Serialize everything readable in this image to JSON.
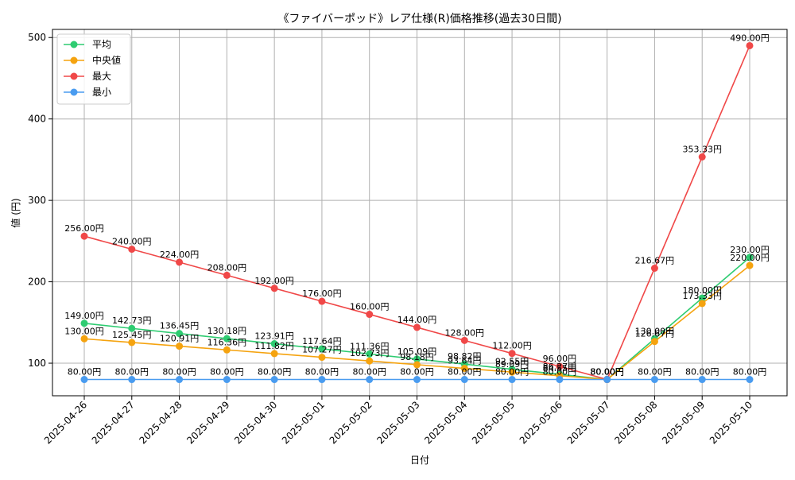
{
  "chart_data": {
    "type": "line",
    "title": "《ファイバーポッド》レア仕様(R)価格推移(過去30日間)",
    "xlabel": "日付",
    "ylabel": "値 (円)",
    "categories": [
      "2025-04-26",
      "2025-04-27",
      "2025-04-28",
      "2025-04-29",
      "2025-04-30",
      "2025-05-01",
      "2025-05-02",
      "2025-05-03",
      "2025-05-04",
      "2025-05-05",
      "2025-05-06",
      "2025-05-07",
      "2025-05-08",
      "2025-05-09",
      "2025-05-10"
    ],
    "ylim": [
      60,
      510
    ],
    "yticks": [
      100,
      200,
      300,
      400,
      500
    ],
    "grid": true,
    "legend_position": "top-left",
    "value_suffix": "円",
    "series": [
      {
        "name": "平均",
        "color": "#2ecc71",
        "values": [
          149.0,
          142.73,
          136.45,
          130.18,
          123.91,
          117.64,
          111.36,
          105.09,
          98.82,
          92.55,
          86.27,
          80.0,
          130.0,
          180.0,
          230.0
        ],
        "labels": [
          "149.00円",
          "142.73円",
          "136.45円",
          "130.18円",
          "123.91円",
          "117.64円",
          "111.36円",
          "105.09円",
          "98.82円",
          "92.55円",
          "86.27円",
          "80.00円",
          "130.00円",
          "180.00円",
          "230.00円"
        ]
      },
      {
        "name": "中央値",
        "color": "#f5a30f",
        "values": [
          130.0,
          125.45,
          120.91,
          116.36,
          111.82,
          107.27,
          102.73,
          98.18,
          93.64,
          89.09,
          84.55,
          80.0,
          126.67,
          173.33,
          220.0
        ],
        "labels": [
          "130.00円",
          "125.45円",
          "120.91円",
          "116.36円",
          "111.82円",
          "107.27円",
          "102.73円",
          "98.18円",
          "93.64円",
          "89.09円",
          "84.55円",
          "80.00円",
          "126.67円",
          "173.33円",
          "220.00円"
        ]
      },
      {
        "name": "最大",
        "color": "#f04848",
        "values": [
          256.0,
          240.0,
          224.0,
          208.0,
          192.0,
          176.0,
          160.0,
          144.0,
          128.0,
          112.0,
          96.0,
          80.0,
          216.67,
          353.33,
          490.0
        ],
        "labels": [
          "256.00円",
          "240.00円",
          "224.00円",
          "208.00円",
          "192.00円",
          "176.00円",
          "160.00円",
          "144.00円",
          "128.00円",
          "112.00円",
          "96.00円",
          "80.00円",
          "216.67円",
          "353.33円",
          "490.00円"
        ]
      },
      {
        "name": "最小",
        "color": "#4a9cf0",
        "values": [
          80,
          80,
          80,
          80,
          80,
          80,
          80,
          80,
          80,
          80,
          80,
          80,
          80,
          80,
          80
        ],
        "labels": [
          "80.00円",
          "80.00円",
          "80.00円",
          "80.00円",
          "80.00円",
          "80.00円",
          "80.00円",
          "80.00円",
          "80.00円",
          "80.00円",
          "80.00円",
          "80.00円",
          "80.00円",
          "80.00円",
          "80.00円"
        ]
      }
    ]
  }
}
